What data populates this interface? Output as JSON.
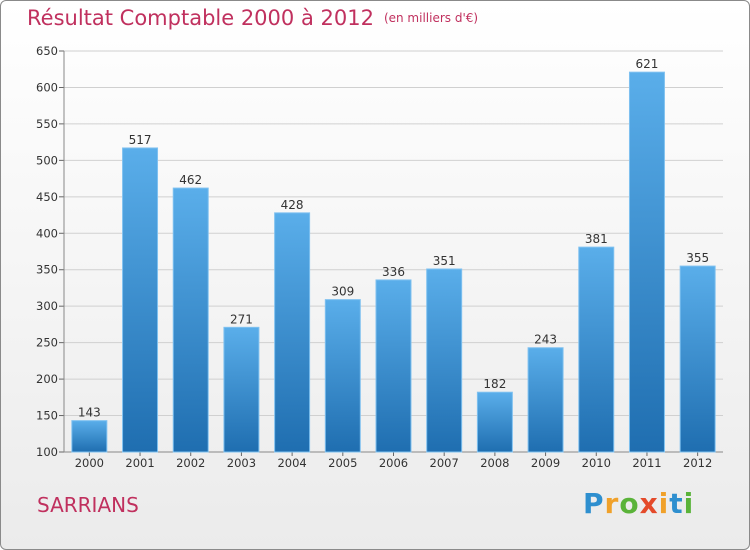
{
  "header": {
    "title": "Résultat Comptable 2000 à 2012",
    "subtitle": "(en milliers d'€)"
  },
  "footer": {
    "commune": "SARRIANS",
    "logo_text": "Proxiti"
  },
  "colors": {
    "title": "#c0305e",
    "bar_top": "#5aaeea",
    "bar_bottom": "#1f6eb0",
    "grid": "#d0d0d0"
  },
  "chart_data": {
    "type": "bar",
    "categories": [
      "2000",
      "2001",
      "2002",
      "2003",
      "2004",
      "2005",
      "2006",
      "2007",
      "2008",
      "2009",
      "2010",
      "2011",
      "2012"
    ],
    "values": [
      143,
      517,
      462,
      271,
      428,
      309,
      336,
      351,
      182,
      243,
      381,
      621,
      355
    ],
    "title": "Résultat Comptable 2000 à 2012",
    "subtitle": "(en milliers d'€)",
    "xlabel": "",
    "ylabel": "",
    "ylim": [
      100,
      650
    ],
    "yticks": [
      100,
      150,
      200,
      250,
      300,
      350,
      400,
      450,
      500,
      550,
      600,
      650
    ],
    "grid": true,
    "data_labels": true
  }
}
